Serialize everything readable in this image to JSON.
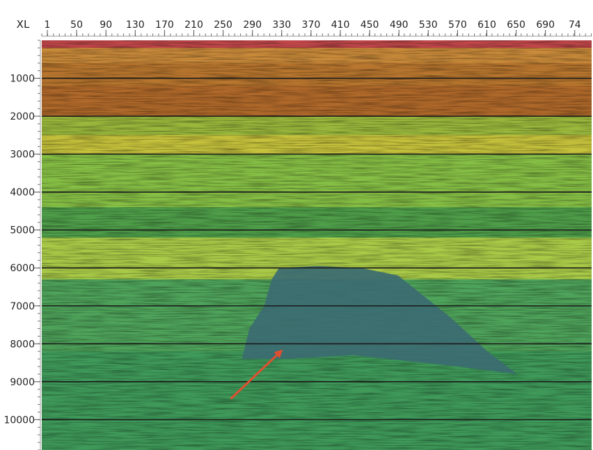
{
  "chart_data": {
    "type": "heatmap",
    "title": "",
    "xlabel": "XL",
    "ylabel": "",
    "x_ticks": [
      "1",
      "50",
      "90",
      "130",
      "170",
      "210",
      "250",
      "290",
      "330",
      "370",
      "410",
      "450",
      "490",
      "530",
      "570",
      "610",
      "650",
      "690",
      "74"
    ],
    "y_ticks": [
      "1000",
      "2000",
      "3000",
      "4000",
      "5000",
      "6000",
      "7000",
      "8000",
      "9000",
      "10000"
    ],
    "y_tick_values": [
      1000,
      2000,
      3000,
      4000,
      5000,
      6000,
      7000,
      8000,
      9000,
      10000
    ],
    "x_range": [
      1,
      740
    ],
    "y_range": [
      0,
      10800
    ],
    "grid": "horizontal",
    "layers": [
      {
        "top": 0,
        "color": "#c0474a"
      },
      {
        "top": 200,
        "color": "#c98a3a"
      },
      {
        "top": 600,
        "color": "#b8762e"
      },
      {
        "top": 1200,
        "color": "#b0692a"
      },
      {
        "top": 2000,
        "color": "#9ab83c"
      },
      {
        "top": 2500,
        "color": "#c6c23c"
      },
      {
        "top": 3000,
        "color": "#86bf45"
      },
      {
        "top": 4400,
        "color": "#4f9f4a"
      },
      {
        "top": 5200,
        "color": "#aacb48"
      },
      {
        "top": 6300,
        "color": "#4fa45b"
      },
      {
        "top": 8200,
        "color": "#3f9a5a"
      }
    ],
    "salt_body": {
      "color": "#3c6b72",
      "outline": [
        [
          320,
          6000
        ],
        [
          370,
          5950
        ],
        [
          430,
          6000
        ],
        [
          480,
          6200
        ],
        [
          550,
          7300
        ],
        [
          600,
          8200
        ],
        [
          640,
          8800
        ],
        [
          560,
          8600
        ],
        [
          420,
          8300
        ],
        [
          330,
          8400
        ],
        [
          270,
          8400
        ],
        [
          280,
          7600
        ],
        [
          300,
          7000
        ],
        [
          310,
          6300
        ]
      ]
    },
    "arrow": {
      "color": "#e05030",
      "from": [
        255,
        9450
      ],
      "to": [
        325,
        8150
      ]
    }
  }
}
